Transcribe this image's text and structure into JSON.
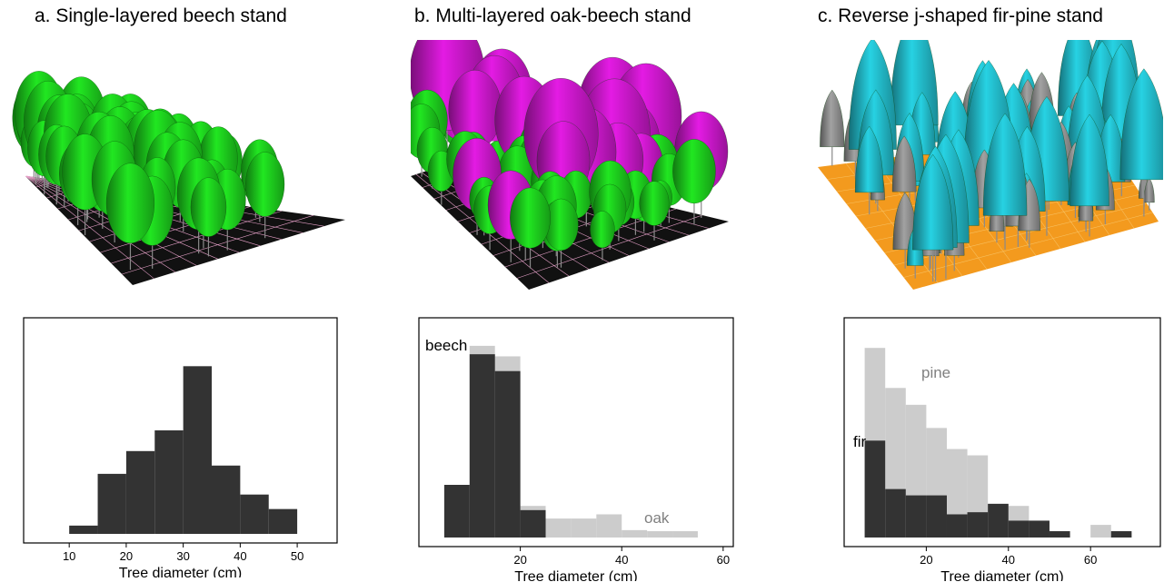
{
  "panels": [
    {
      "title": "a. Single-layered beech stand",
      "stand_visual": {
        "species": [
          "beech"
        ],
        "crown_colors": [
          "#1fdc1f"
        ],
        "ground_color": "#111111",
        "grid_color": "#e6a0c8"
      }
    },
    {
      "title": "b. Multi-layered oak-beech stand",
      "stand_visual": {
        "species": [
          "oak",
          "beech"
        ],
        "crown_colors": [
          "#d91ad9",
          "#1fdc1f"
        ],
        "ground_color": "#111111",
        "grid_color": "#e6a0c8"
      }
    },
    {
      "title": "c. Reverse j-shaped fir-pine stand",
      "stand_visual": {
        "species": [
          "fir",
          "pine"
        ],
        "crown_colors": [
          "#25c8d8",
          "#9a9a9a"
        ],
        "ground_color": "#f39a1e",
        "grid_color": "#f7c060"
      }
    }
  ],
  "chart_data": [
    {
      "type": "bar",
      "subtype": "histogram",
      "xlabel": "Tree diameter (cm)",
      "xlim": [
        2,
        57
      ],
      "xticks": [
        10,
        20,
        30,
        40,
        50
      ],
      "ylim": [
        0,
        10
      ],
      "bin_width": 5,
      "series": [
        {
          "color": "#333333",
          "bin_starts": [
            10,
            15,
            20,
            25,
            30,
            35,
            40,
            45
          ],
          "values": [
            0.4,
            2.9,
            4.0,
            5.0,
            8.1,
            3.3,
            1.9,
            1.2
          ]
        }
      ]
    },
    {
      "type": "bar",
      "subtype": "histogram",
      "xlabel": "Tree diameter (cm)",
      "xlim": [
        0,
        62
      ],
      "xticks": [
        20,
        40,
        60
      ],
      "ylim": [
        0,
        10
      ],
      "bin_width": 5,
      "series": [
        {
          "name": "oak",
          "color": "#cccccc",
          "bin_starts": [
            5,
            10,
            15,
            20,
            25,
            30,
            35,
            40,
            45,
            50
          ],
          "values": [
            2.5,
            9.1,
            8.6,
            1.5,
            0.9,
            0.9,
            1.1,
            0.35,
            0.3,
            0.3
          ]
        },
        {
          "name": "beech",
          "color": "#333333",
          "bin_starts": [
            5,
            10,
            15,
            20
          ],
          "values": [
            2.5,
            8.7,
            7.9,
            1.3
          ]
        }
      ]
    },
    {
      "type": "bar",
      "subtype": "histogram",
      "xlabel": "Tree diameter (cm)",
      "xlim": [
        0,
        77
      ],
      "xticks": [
        20,
        40,
        60
      ],
      "ylim": [
        0,
        10
      ],
      "bin_width": 5,
      "series": [
        {
          "name": "pine",
          "color": "#cccccc",
          "bin_starts": [
            5,
            10,
            15,
            20,
            25,
            30,
            35,
            40,
            45,
            50,
            60,
            65
          ],
          "values": [
            9.0,
            7.1,
            6.3,
            5.2,
            4.2,
            3.9,
            1.6,
            1.5,
            0.8,
            0.2,
            0.6,
            0.2
          ]
        },
        {
          "name": "fir",
          "color": "#333333",
          "bin_starts": [
            5,
            10,
            15,
            20,
            25,
            30,
            35,
            40,
            45,
            50,
            65
          ],
          "values": [
            4.6,
            2.3,
            2.0,
            2.0,
            1.1,
            1.2,
            1.6,
            0.8,
            0.8,
            0.3,
            0.3
          ]
        }
      ]
    }
  ]
}
